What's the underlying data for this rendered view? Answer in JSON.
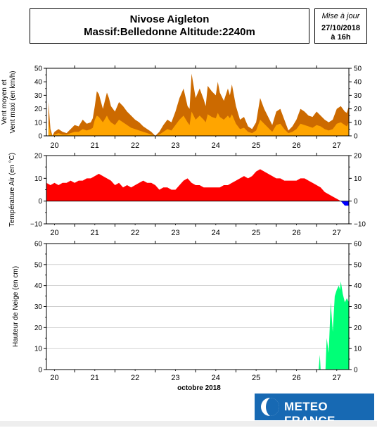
{
  "header": {
    "title_line1": "Nivose Aigleton",
    "title_line2": "Massif:Belledonne Altitude:2240m",
    "update_label": "Mise à jour",
    "update_date": "27/10/2018",
    "update_time": "à 16h"
  },
  "logo": {
    "text": "METEO FRANCE",
    "icon": "meteo-france-logo-icon",
    "color": "#1769b3"
  },
  "chart_data": [
    {
      "type": "area",
      "ylabel_line1": "Vent moyen et",
      "ylabel_line2": "Vent maxi (en km/h)",
      "ylim": [
        0,
        50
      ],
      "yticks": [
        0,
        10,
        20,
        30,
        40,
        50
      ],
      "xlim": [
        19.8,
        27.3
      ],
      "xticks": [
        "20",
        "21",
        "22",
        "23",
        "24",
        "25",
        "26",
        "27"
      ],
      "grid": false,
      "colors": {
        "max": "#cc6a00",
        "mean": "#ffa500"
      },
      "series": [
        {
          "key": "max",
          "x": [
            19.85,
            19.9,
            19.95,
            20.0,
            20.1,
            20.2,
            20.3,
            20.4,
            20.5,
            20.6,
            20.7,
            20.8,
            20.9,
            20.95,
            21.0,
            21.05,
            21.1,
            21.2,
            21.3,
            21.35,
            21.4,
            21.5,
            21.6,
            21.7,
            21.8,
            21.9,
            22.0,
            22.1,
            22.2,
            22.3,
            22.4,
            22.5,
            22.6,
            22.7,
            22.8,
            22.9,
            23.0,
            23.1,
            23.2,
            23.3,
            23.35,
            23.4,
            23.5,
            23.6,
            23.7,
            23.75,
            23.8,
            23.9,
            24.0,
            24.05,
            24.1,
            24.2,
            24.3,
            24.35,
            24.4,
            24.5,
            24.6,
            24.7,
            24.8,
            24.9,
            25.0,
            25.1,
            25.2,
            25.3,
            25.4,
            25.5,
            25.6,
            25.7,
            25.8,
            25.9,
            26.0,
            26.1,
            26.2,
            26.3,
            26.4,
            26.5,
            26.6,
            26.7,
            26.8,
            26.9,
            27.0,
            27.1,
            27.2,
            27.25,
            27.3
          ],
          "values": [
            25,
            5,
            0,
            3,
            5,
            3,
            2,
            5,
            8,
            7,
            12,
            9,
            10,
            13,
            22,
            33,
            31,
            20,
            32,
            28,
            22,
            18,
            25,
            22,
            18,
            15,
            12,
            10,
            7,
            5,
            3,
            0,
            3,
            8,
            12,
            10,
            18,
            28,
            35,
            22,
            20,
            46,
            28,
            35,
            27,
            22,
            37,
            33,
            30,
            40,
            32,
            26,
            35,
            30,
            38,
            22,
            12,
            14,
            7,
            5,
            10,
            28,
            20,
            14,
            8,
            18,
            20,
            12,
            4,
            7,
            12,
            20,
            18,
            15,
            14,
            18,
            15,
            12,
            10,
            12,
            20,
            22,
            18,
            17,
            22
          ]
        },
        {
          "key": "mean",
          "x": [
            19.85,
            19.9,
            19.95,
            20.0,
            20.1,
            20.2,
            20.3,
            20.4,
            20.5,
            20.6,
            20.7,
            20.8,
            20.9,
            20.95,
            21.0,
            21.05,
            21.1,
            21.2,
            21.3,
            21.35,
            21.4,
            21.5,
            21.6,
            21.7,
            21.8,
            21.9,
            22.0,
            22.1,
            22.2,
            22.3,
            22.4,
            22.5,
            22.6,
            22.7,
            22.8,
            22.9,
            23.0,
            23.1,
            23.2,
            23.3,
            23.35,
            23.4,
            23.5,
            23.6,
            23.7,
            23.75,
            23.8,
            23.9,
            24.0,
            24.05,
            24.1,
            24.2,
            24.3,
            24.35,
            24.4,
            24.5,
            24.6,
            24.7,
            24.8,
            24.9,
            25.0,
            25.1,
            25.2,
            25.3,
            25.4,
            25.5,
            25.6,
            25.7,
            25.8,
            25.9,
            26.0,
            26.1,
            26.2,
            26.3,
            26.4,
            26.5,
            26.6,
            26.7,
            26.8,
            26.9,
            27.0,
            27.1,
            27.2,
            27.25,
            27.3
          ],
          "values": [
            10,
            2,
            0,
            1,
            2,
            1,
            1,
            2,
            3,
            3,
            5,
            4,
            5,
            6,
            12,
            15,
            14,
            10,
            15,
            12,
            10,
            8,
            12,
            10,
            8,
            6,
            5,
            4,
            3,
            2,
            1,
            0,
            1,
            3,
            5,
            4,
            8,
            12,
            15,
            10,
            8,
            18,
            12,
            15,
            12,
            10,
            16,
            14,
            13,
            17,
            14,
            12,
            15,
            13,
            16,
            9,
            5,
            6,
            3,
            2,
            4,
            12,
            9,
            6,
            3,
            8,
            9,
            5,
            2,
            3,
            5,
            9,
            8,
            7,
            6,
            8,
            7,
            5,
            4,
            5,
            9,
            10,
            8,
            7,
            10
          ]
        }
      ]
    },
    {
      "type": "area",
      "ylabel": "Température Air (en °C)",
      "ylim": [
        -10,
        20
      ],
      "yticks": [
        -10,
        0,
        10,
        20
      ],
      "xlim": [
        19.8,
        27.3
      ],
      "xticks": [
        "20",
        "21",
        "22",
        "23",
        "24",
        "25",
        "26",
        "27"
      ],
      "grid": false,
      "colors": {
        "positive": "#ff0000",
        "negative": "#0000ff"
      },
      "series": [
        {
          "key": "temperature",
          "x": [
            19.8,
            19.9,
            20.0,
            20.1,
            20.2,
            20.3,
            20.4,
            20.5,
            20.6,
            20.7,
            20.8,
            20.9,
            21.0,
            21.1,
            21.2,
            21.3,
            21.4,
            21.5,
            21.6,
            21.7,
            21.8,
            21.9,
            22.0,
            22.1,
            22.2,
            22.3,
            22.4,
            22.5,
            22.6,
            22.7,
            22.8,
            22.9,
            23.0,
            23.1,
            23.2,
            23.3,
            23.4,
            23.5,
            23.6,
            23.7,
            23.8,
            23.9,
            24.0,
            24.1,
            24.2,
            24.3,
            24.4,
            24.5,
            24.6,
            24.7,
            24.8,
            24.9,
            25.0,
            25.1,
            25.2,
            25.3,
            25.4,
            25.5,
            25.6,
            25.7,
            25.8,
            25.9,
            26.0,
            26.1,
            26.2,
            26.3,
            26.4,
            26.5,
            26.6,
            26.7,
            26.8,
            26.9,
            27.0,
            27.1,
            27.2,
            27.3
          ],
          "values": [
            8,
            7,
            8,
            7,
            8,
            8,
            9,
            8,
            9,
            9,
            10,
            10,
            11,
            12,
            11,
            10,
            9,
            7,
            8,
            6,
            7,
            6,
            7,
            8,
            9,
            8,
            8,
            7,
            5,
            6,
            6,
            5,
            5,
            7,
            9,
            10,
            8,
            7,
            7,
            6,
            6,
            6,
            6,
            6,
            7,
            7,
            8,
            9,
            10,
            11,
            10,
            11,
            13,
            14,
            13,
            12,
            11,
            10,
            10,
            9,
            9,
            9,
            9,
            10,
            10,
            9,
            8,
            7,
            6,
            4,
            3,
            2,
            1,
            0,
            -2,
            -2
          ]
        }
      ]
    },
    {
      "type": "area",
      "ylabel": "Hauteur de Neige (en cm)",
      "ylim": [
        0,
        60
      ],
      "yticks": [
        0,
        10,
        20,
        30,
        40,
        50,
        60
      ],
      "xlim": [
        19.8,
        27.3
      ],
      "xticks": [
        "20",
        "21",
        "22",
        "23",
        "24",
        "25",
        "26",
        "27"
      ],
      "xlabel": "octobre 2018",
      "grid": true,
      "colors": {
        "snow": "#00ff77"
      },
      "series": [
        {
          "key": "snow",
          "x": [
            19.8,
            26.5,
            26.52,
            26.55,
            26.58,
            26.6,
            26.62,
            26.72,
            26.75,
            26.8,
            26.85,
            26.9,
            26.95,
            27.0,
            27.05,
            27.08,
            27.1,
            27.15,
            27.2,
            27.25,
            27.3
          ],
          "values": [
            0,
            0,
            0,
            0,
            7,
            0,
            0,
            0,
            15,
            8,
            32,
            18,
            35,
            38,
            40,
            38,
            42,
            36,
            32,
            34,
            32
          ]
        }
      ]
    }
  ]
}
